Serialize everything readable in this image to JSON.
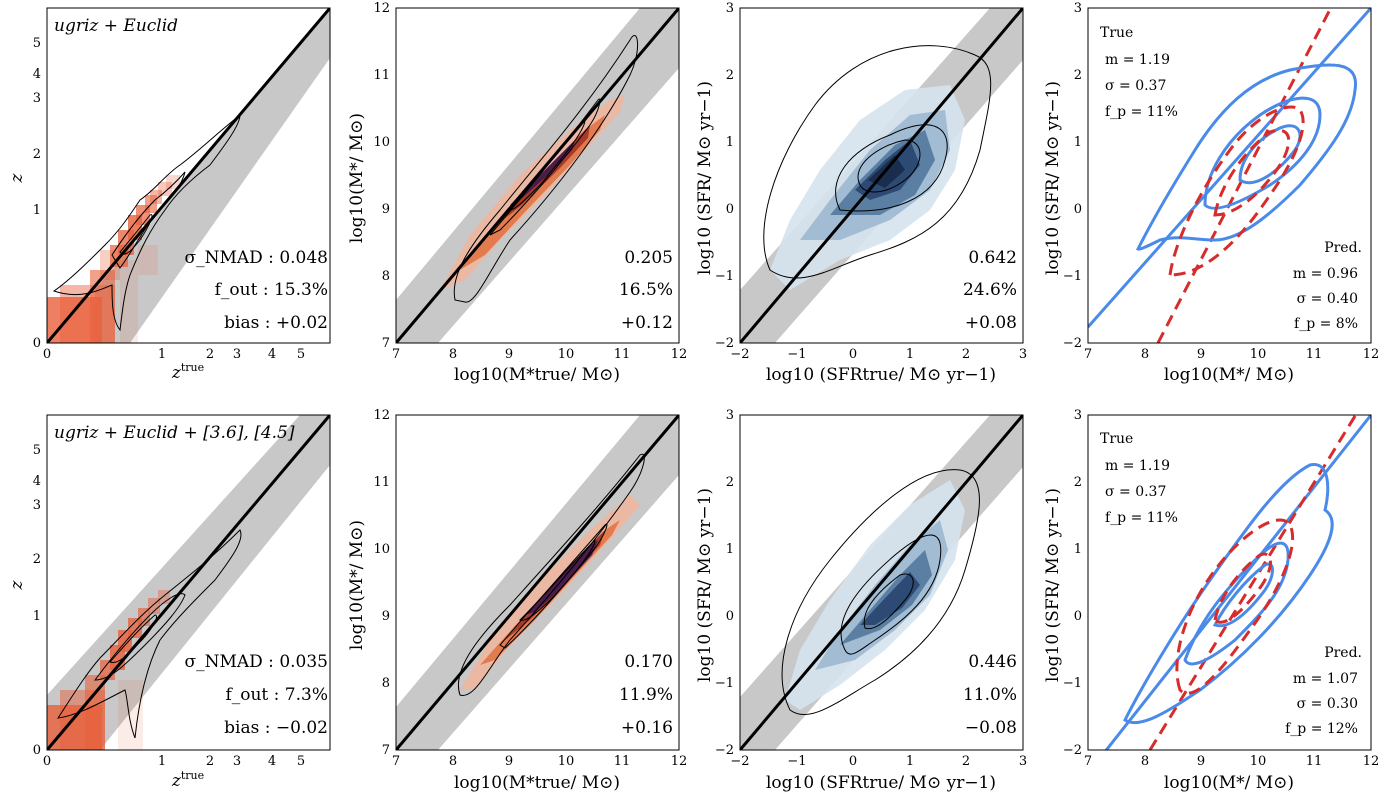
{
  "figure": {
    "rows": [
      {
        "band_label": "ugriz + Euclid",
        "z_stats": {
          "sigma_label": "σ_NMAD",
          "sigma": "0.048",
          "fout_label": "f_out",
          "fout": "15.3%",
          "bias_label": "bias",
          "bias": "+0.02"
        },
        "mass_stats": {
          "sigma": "0.205",
          "fout": "16.5%",
          "bias": "+0.12"
        },
        "sfr_stats": {
          "sigma": "0.642",
          "fout": "24.6%",
          "bias": "+0.08"
        },
        "ms_true": {
          "label": "True",
          "m": "m = 1.19",
          "sigma": "σ = 0.37",
          "fp": "f_p = 11%"
        },
        "ms_pred": {
          "label": "Pred.",
          "m": "m = 0.96",
          "sigma": "σ = 0.40",
          "fp": "f_p = 8%"
        }
      },
      {
        "band_label": "ugriz + Euclid + [3.6], [4.5]",
        "z_stats": {
          "sigma_label": "σ_NMAD",
          "sigma": "0.035",
          "fout_label": "f_out",
          "fout": "7.3%",
          "bias_label": "bias",
          "bias": "−0.02"
        },
        "mass_stats": {
          "sigma": "0.170",
          "fout": "11.9%",
          "bias": "+0.16"
        },
        "sfr_stats": {
          "sigma": "0.446",
          "fout": "11.0%",
          "bias": "−0.08"
        },
        "ms_true": {
          "label": "True",
          "m": "m = 1.19",
          "sigma": "σ = 0.37",
          "fp": "f_p = 11%"
        },
        "ms_pred": {
          "label": "Pred.",
          "m": "m = 1.07",
          "sigma": "σ = 0.30",
          "fp": "f_p = 12%"
        }
      }
    ],
    "axis_labels": {
      "z_y": "z",
      "z_x": "z",
      "z_x_sup": "true",
      "mass_y": "log10(M*/ M⊙)",
      "mass_x": "log10(M*true/ M⊙)",
      "sfr_y": "log10 (SFR/ M⊙ yr−1)",
      "sfr_x": "log10 (SFRtrue/ M⊙ yr−1)",
      "ms_y": "log10 (SFR/ M⊙ yr−1)",
      "ms_x": "log10(M*/ M⊙)"
    },
    "colors": {
      "sigma": "#c0608e",
      "fout": "#5b8fe6",
      "bias": "#5a9a3e",
      "true_line": "#d62c2c",
      "pred_line": "#4a8ae8",
      "z_heat": "#e8603c",
      "mass_heat": "#c8481e",
      "sfr_heat": "#2c4a74"
    }
  },
  "chart_data": [
    {
      "type": "heatmap",
      "title": "",
      "xlabel": "z^true",
      "ylabel": "z",
      "xlim": [
        0,
        6
      ],
      "ylim": [
        0,
        6
      ],
      "x_ticks": [
        "0",
        "1",
        "2",
        "3",
        "4",
        "5"
      ],
      "y_ticks": [
        "0",
        "1",
        "2",
        "3",
        "4",
        "5"
      ],
      "one_to_one_line": true
    },
    {
      "type": "heatmap",
      "title": "",
      "xlabel": "log10(M*true/ M⊙)",
      "ylabel": "log10(M*/ M⊙)",
      "xlim": [
        7,
        12
      ],
      "ylim": [
        7,
        12
      ],
      "x_ticks": [
        "7",
        "8",
        "9",
        "10",
        "11",
        "12"
      ],
      "y_ticks": [
        "7",
        "8",
        "9",
        "10",
        "11",
        "12"
      ],
      "one_to_one_line": true
    },
    {
      "type": "heatmap",
      "title": "",
      "xlabel": "log10 (SFRtrue/ M⊙ yr−1)",
      "ylabel": "log10 (SFR/ M⊙ yr−1)",
      "xlim": [
        -2,
        3
      ],
      "ylim": [
        -2,
        3
      ],
      "x_ticks": [
        "−2",
        "−1",
        "0",
        "1",
        "2",
        "3"
      ],
      "y_ticks": [
        "−2",
        "−1",
        "0",
        "1",
        "2",
        "3"
      ],
      "one_to_one_line": true
    },
    {
      "type": "line",
      "title": "",
      "xlabel": "log10(M*/ M⊙)",
      "ylabel": "log10 (SFR/ M⊙ yr−1)",
      "xlim": [
        7,
        12
      ],
      "ylim": [
        -2,
        3
      ],
      "x_ticks": [
        "7",
        "8",
        "9",
        "10",
        "11",
        "12"
      ],
      "y_ticks": [
        "−2",
        "−1",
        "0",
        "1",
        "2",
        "3"
      ],
      "series": [
        {
          "name": "True",
          "fits": [
            {
              "m": 1.19,
              "x0": 8.6,
              "y0": -1.4
            }
          ],
          "x": [
            7,
            12
          ],
          "y": [
            -2,
            4.0
          ]
        },
        {
          "name": "Pred.",
          "fits": [
            {
              "m": 0.96
            },
            {
              "m": 1.07
            }
          ],
          "x": [
            7,
            12
          ],
          "y": [
            -1.8,
            3
          ]
        }
      ]
    }
  ]
}
